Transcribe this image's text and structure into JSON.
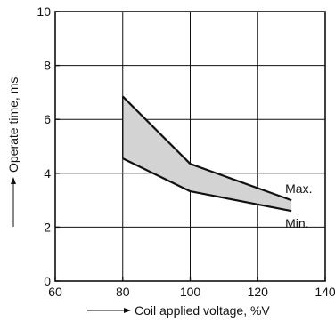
{
  "chart_data": {
    "type": "area",
    "title": "",
    "xlabel": "Coil applied voltage, %V",
    "ylabel": "Operate time, ms",
    "xlim": [
      60,
      140
    ],
    "ylim": [
      0,
      10
    ],
    "x_ticks": [
      60,
      80,
      100,
      120,
      140
    ],
    "y_ticks": [
      0,
      2,
      4,
      6,
      8,
      10
    ],
    "x_tick_labels": [
      "60",
      "80",
      "100",
      "120",
      "140"
    ],
    "y_tick_labels": [
      "0",
      "2",
      "4",
      "6",
      "8",
      "10"
    ],
    "grid": true,
    "band_color": "#d3d3d3",
    "line_color": "#111111",
    "series": [
      {
        "name": "Max.",
        "x": [
          80,
          100,
          130
        ],
        "y": [
          6.85,
          4.35,
          3.0
        ]
      },
      {
        "name": "Min.",
        "x": [
          80,
          100,
          130
        ],
        "y": [
          4.55,
          3.33,
          2.6
        ]
      }
    ]
  }
}
